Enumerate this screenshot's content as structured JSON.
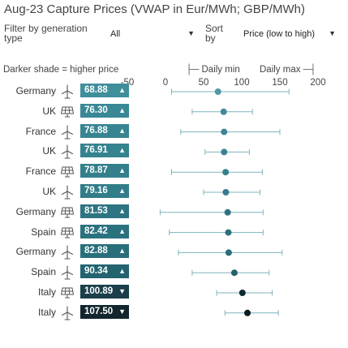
{
  "title": "Aug-23 Capture Prices (VWAP in Eur/MWh; GBP/MWh)",
  "filter": {
    "label": "Filter by generation type",
    "label_line1": "Filter by generation",
    "label_line2": "type",
    "value": "All"
  },
  "sort": {
    "label_line1": "Sort",
    "label_line2": "by",
    "value": "Price (low to high)"
  },
  "legend": {
    "shade_note": "Darker shade = higher price",
    "daily_min": "Daily min",
    "daily_max": "Daily max"
  },
  "axis": {
    "ticks": [
      "-50",
      "0",
      "50",
      "100",
      "150",
      "200"
    ],
    "tick_values": [
      -50,
      0,
      50,
      100,
      150,
      200
    ]
  },
  "chart_data": {
    "type": "dot-range",
    "x_range": [
      -50,
      200
    ],
    "rows": [
      {
        "country": "Germany",
        "tech": "wind",
        "label": "68.88",
        "value": 68.88,
        "min": 8,
        "max": 162,
        "trend": "up"
      },
      {
        "country": "UK",
        "tech": "solar",
        "label": "76.30",
        "value": 76.3,
        "min": 35,
        "max": 114,
        "trend": "up"
      },
      {
        "country": "France",
        "tech": "wind",
        "label": "76.88",
        "value": 76.88,
        "min": 20,
        "max": 150,
        "trend": "up"
      },
      {
        "country": "UK",
        "tech": "wind",
        "label": "76.91",
        "value": 76.91,
        "min": 52,
        "max": 110,
        "trend": "up"
      },
      {
        "country": "France",
        "tech": "solar",
        "label": "78.87",
        "value": 78.87,
        "min": 8,
        "max": 127,
        "trend": "up"
      },
      {
        "country": "UK",
        "tech": "wind",
        "label": "79.16",
        "value": 79.16,
        "min": 50,
        "max": 124,
        "trend": "up"
      },
      {
        "country": "Germany",
        "tech": "solar",
        "label": "81.53",
        "value": 81.53,
        "min": -7,
        "max": 128,
        "trend": "up"
      },
      {
        "country": "Spain",
        "tech": "solar",
        "label": "82.42",
        "value": 82.42,
        "min": 5,
        "max": 128,
        "trend": "up"
      },
      {
        "country": "Germany",
        "tech": "wind",
        "label": "82.88",
        "value": 82.88,
        "min": 17,
        "max": 153,
        "trend": "up"
      },
      {
        "country": "Spain",
        "tech": "wind",
        "label": "90.34",
        "value": 90.34,
        "min": 35,
        "max": 136,
        "trend": "up"
      },
      {
        "country": "Italy",
        "tech": "solar",
        "label": "100.89",
        "value": 100.89,
        "min": 67,
        "max": 140,
        "trend": "down"
      },
      {
        "country": "Italy",
        "tech": "wind",
        "label": "107.50",
        "value": 107.5,
        "min": 78,
        "max": 148,
        "trend": "down"
      }
    ]
  },
  "colors": {
    "badge_scale": [
      "#3f8e9b",
      "#3a8896",
      "#378592",
      "#35838f",
      "#33808c",
      "#317d89",
      "#2d7582",
      "#2b727f",
      "#296f7b",
      "#236470",
      "#1a3f4a",
      "#13262e"
    ],
    "dot_scale": [
      "#4e9aa6",
      "#3f8a97",
      "#3c8693",
      "#3a8390",
      "#377f8c",
      "#357c89",
      "#2f7280",
      "#2d6f7c",
      "#2b6c79",
      "#26606b",
      "#0f2a33",
      "#0a1a20"
    ],
    "range_line": "#7fb3bb"
  },
  "icons": {
    "wind": "wind-turbine-icon",
    "solar": "solar-panel-icon",
    "up": "triangle-up-icon",
    "down": "triangle-down-icon"
  }
}
